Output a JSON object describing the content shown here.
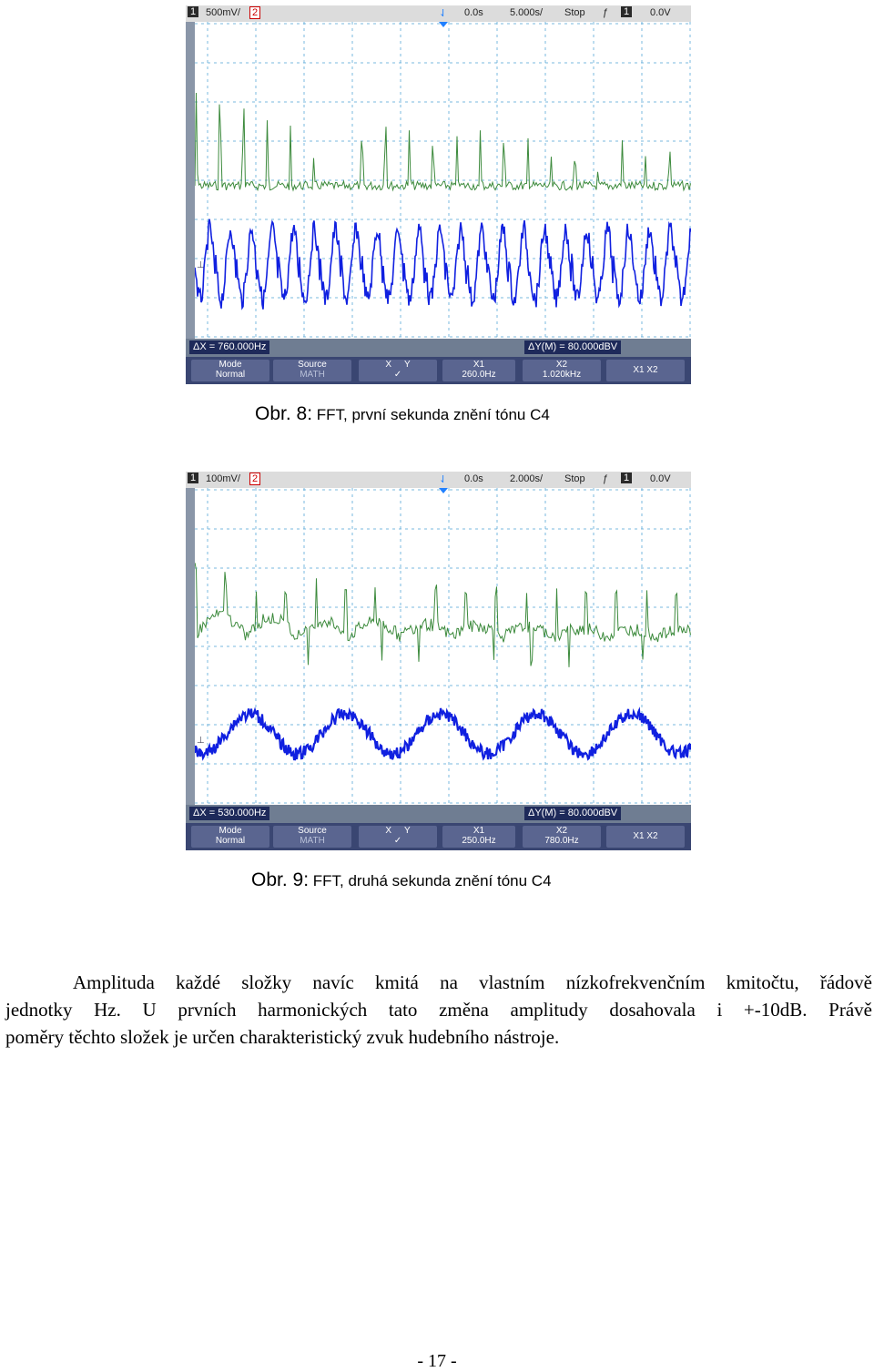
{
  "figures": [
    {
      "topbar": {
        "ch1": "1",
        "ch1_scale": "500mV/",
        "ch2": "2",
        "trig_pos": "0.0s",
        "time_scale": "5.000s/",
        "run_state": "Stop",
        "trig_ch": "1",
        "trig_level": "0.0V"
      },
      "status": {
        "delta_x": "ΔX = 760.000Hz",
        "delta_y": "ΔY(M) = 80.000dBV"
      },
      "softkeys": {
        "mode_label": "Mode",
        "mode_value": "Normal",
        "source_label": "Source",
        "source_value": "MATH",
        "x_label": "X",
        "y_label": "Y",
        "x1_label": "X1",
        "x1_value": "260.0Hz",
        "x2_label": "X2",
        "x2_value": "1.020kHz",
        "x1x2_label": "X1 X2"
      },
      "caption_prefix": "Obr. 8:",
      "caption_text": " FFT, první sekunda znění tónu C4"
    },
    {
      "topbar": {
        "ch1": "1",
        "ch1_scale": "100mV/",
        "ch2": "2",
        "trig_pos": "0.0s",
        "time_scale": "2.000s/",
        "run_state": "Stop",
        "trig_ch": "1",
        "trig_level": "0.0V"
      },
      "status": {
        "delta_x": "ΔX = 530.000Hz",
        "delta_y": "ΔY(M) = 80.000dBV"
      },
      "softkeys": {
        "mode_label": "Mode",
        "mode_value": "Normal",
        "source_label": "Source",
        "source_value": "MATH",
        "x_label": "X",
        "y_label": "Y",
        "x1_label": "X1",
        "x1_value": "250.0Hz",
        "x2_label": "X2",
        "x2_value": "780.0Hz",
        "x1x2_label": "X1 X2"
      },
      "caption_prefix": "Obr. 9:",
      "caption_text": " FFT, druhá sekunda znění tónu C4"
    }
  ],
  "paragraph_lines": [
    "Amplituda každé složky navíc kmitá na vlastním nízkofrekvenčním kmitočtu, řádově",
    "jednotky Hz. U prvních harmonických tato změna amplitudy dosahovala i +-10dB. Právě",
    "poměry těchto složek je určen charakteristický zvuk hudebního nástroje."
  ],
  "page_number": "- 17 -",
  "colors": {
    "fft_trace": "#3c8a3c",
    "time_trace": "#1020e0",
    "grid": "#5aa8d8",
    "cursor_marker": "#2080ff"
  }
}
